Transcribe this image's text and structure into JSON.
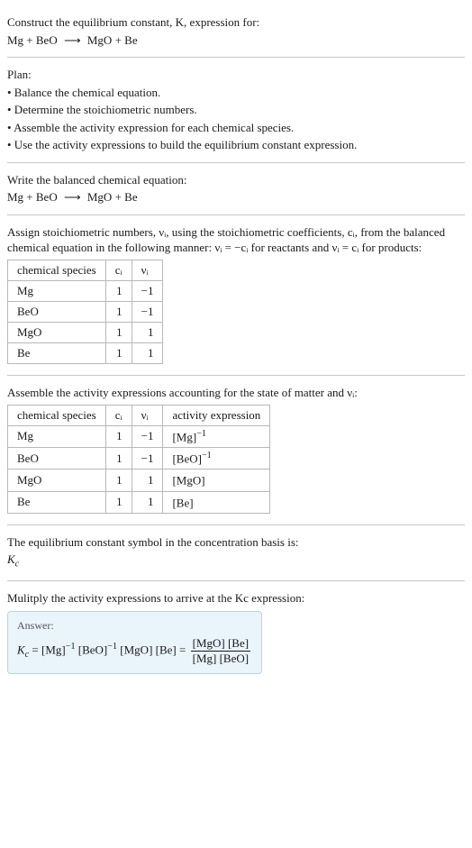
{
  "intro": {
    "line1": "Construct the equilibrium constant, K, expression for:",
    "equation_lhs": "Mg + BeO",
    "equation_arrow": "⟶",
    "equation_rhs": "MgO + Be"
  },
  "plan": {
    "heading": "Plan:",
    "items": [
      "• Balance the chemical equation.",
      "• Determine the stoichiometric numbers.",
      "• Assemble the activity expression for each chemical species.",
      "• Use the activity expressions to build the equilibrium constant expression."
    ]
  },
  "balanced": {
    "heading": "Write the balanced chemical equation:",
    "equation_lhs": "Mg + BeO",
    "equation_arrow": "⟶",
    "equation_rhs": "MgO + Be"
  },
  "assign": {
    "text": "Assign stoichiometric numbers, νᵢ, using the stoichiometric coefficients, cᵢ, from the balanced chemical equation in the following manner: νᵢ = −cᵢ for reactants and νᵢ = cᵢ for products:",
    "columns": [
      "chemical species",
      "cᵢ",
      "νᵢ"
    ],
    "rows": [
      [
        "Mg",
        "1",
        "−1"
      ],
      [
        "BeO",
        "1",
        "−1"
      ],
      [
        "MgO",
        "1",
        "1"
      ],
      [
        "Be",
        "1",
        "1"
      ]
    ]
  },
  "activity": {
    "text": "Assemble the activity expressions accounting for the state of matter and νᵢ:",
    "columns": [
      "chemical species",
      "cᵢ",
      "νᵢ",
      "activity expression"
    ],
    "rows": [
      {
        "sp": "Mg",
        "c": "1",
        "v": "−1",
        "expr_base": "[Mg]",
        "expr_sup": "−1"
      },
      {
        "sp": "BeO",
        "c": "1",
        "v": "−1",
        "expr_base": "[BeO]",
        "expr_sup": "−1"
      },
      {
        "sp": "MgO",
        "c": "1",
        "v": "1",
        "expr_base": "[MgO]",
        "expr_sup": ""
      },
      {
        "sp": "Be",
        "c": "1",
        "v": "1",
        "expr_base": "[Be]",
        "expr_sup": ""
      }
    ]
  },
  "symbol": {
    "text": "The equilibrium constant symbol in the concentration basis is:",
    "K": "K",
    "Ksub": "c"
  },
  "multiply": {
    "text": "Mulitply the activity expressions to arrive at the Kc expression:"
  },
  "answer": {
    "label": "Answer:",
    "K": "K",
    "Ksub": "c",
    "eq": " = ",
    "t1_base": "[Mg]",
    "t1_sup": "−1",
    "t2_base": "[BeO]",
    "t2_sup": "−1",
    "t3": "[MgO]",
    "t4": "[Be]",
    "eq2": " = ",
    "num": "[MgO] [Be]",
    "den": "[Mg] [BeO]"
  }
}
